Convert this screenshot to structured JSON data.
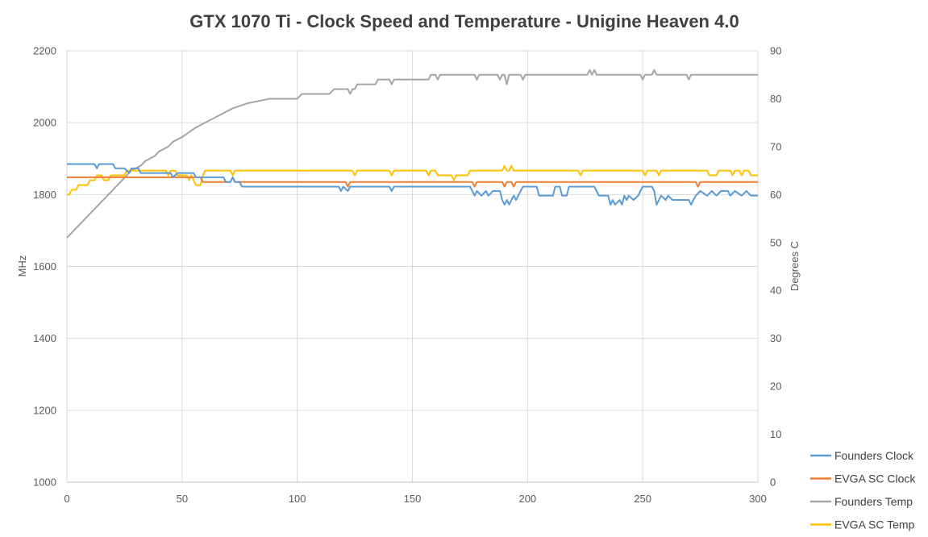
{
  "chart_data": {
    "type": "line",
    "title": "GTX 1070 Ti - Clock Speed and Temperature - Unigine Heaven 4.0",
    "xlabel": "",
    "ylabel": "MHz",
    "y2label": "Degrees C",
    "xlim": [
      0,
      300
    ],
    "ylim": [
      1000,
      2200
    ],
    "y2lim": [
      0,
      90
    ],
    "xticks": [
      "0",
      "50",
      "100",
      "150",
      "200",
      "250",
      "300"
    ],
    "xtick_values": [
      0,
      50,
      100,
      150,
      200,
      250,
      300
    ],
    "yticks": [
      "1000",
      "1200",
      "1400",
      "1600",
      "1800",
      "2000",
      "2200"
    ],
    "ytick_values": [
      1000,
      1200,
      1400,
      1600,
      1800,
      2000,
      2200
    ],
    "y2ticks": [
      "0",
      "10",
      "20",
      "30",
      "40",
      "50",
      "60",
      "70",
      "80",
      "90"
    ],
    "y2tick_values": [
      0,
      10,
      20,
      30,
      40,
      50,
      60,
      70,
      80,
      90
    ],
    "grid": true,
    "legend_position": "bottom-right",
    "series": [
      {
        "name": "Founders Clock",
        "axis": "left",
        "color": "#5B9BD5",
        "points": [
          [
            0,
            1885
          ],
          [
            12,
            1885
          ],
          [
            13,
            1873
          ],
          [
            14,
            1885
          ],
          [
            20,
            1885
          ],
          [
            21,
            1873
          ],
          [
            25,
            1873
          ],
          [
            27,
            1860
          ],
          [
            28,
            1873
          ],
          [
            31,
            1873
          ],
          [
            32,
            1860
          ],
          [
            45,
            1860
          ],
          [
            46,
            1848
          ],
          [
            48,
            1860
          ],
          [
            55,
            1860
          ],
          [
            56,
            1848
          ],
          [
            68,
            1848
          ],
          [
            69,
            1835
          ],
          [
            71,
            1835
          ],
          [
            72,
            1848
          ],
          [
            73,
            1835
          ],
          [
            75,
            1835
          ],
          [
            76,
            1822
          ],
          [
            118,
            1822
          ],
          [
            119,
            1810
          ],
          [
            120,
            1822
          ],
          [
            122,
            1810
          ],
          [
            123,
            1822
          ],
          [
            140,
            1822
          ],
          [
            141,
            1810
          ],
          [
            142,
            1822
          ],
          [
            175,
            1822
          ],
          [
            176,
            1810
          ],
          [
            177,
            1797
          ],
          [
            178,
            1810
          ],
          [
            180,
            1797
          ],
          [
            182,
            1810
          ],
          [
            183,
            1797
          ],
          [
            185,
            1810
          ],
          [
            188,
            1810
          ],
          [
            189,
            1785
          ],
          [
            190,
            1772
          ],
          [
            191,
            1785
          ],
          [
            192,
            1772
          ],
          [
            193,
            1785
          ],
          [
            194,
            1797
          ],
          [
            195,
            1785
          ],
          [
            197,
            1810
          ],
          [
            198,
            1822
          ],
          [
            204,
            1822
          ],
          [
            205,
            1797
          ],
          [
            211,
            1797
          ],
          [
            212,
            1822
          ],
          [
            214,
            1822
          ],
          [
            215,
            1797
          ],
          [
            217,
            1797
          ],
          [
            218,
            1822
          ],
          [
            229,
            1822
          ],
          [
            230,
            1810
          ],
          [
            231,
            1797
          ],
          [
            235,
            1797
          ],
          [
            236,
            1772
          ],
          [
            237,
            1785
          ],
          [
            238,
            1772
          ],
          [
            240,
            1785
          ],
          [
            241,
            1772
          ],
          [
            242,
            1797
          ],
          [
            243,
            1785
          ],
          [
            244,
            1797
          ],
          [
            246,
            1785
          ],
          [
            248,
            1797
          ],
          [
            249,
            1810
          ],
          [
            250,
            1822
          ],
          [
            254,
            1822
          ],
          [
            255,
            1810
          ],
          [
            256,
            1772
          ],
          [
            258,
            1797
          ],
          [
            260,
            1785
          ],
          [
            261,
            1797
          ],
          [
            263,
            1785
          ],
          [
            270,
            1785
          ],
          [
            271,
            1772
          ],
          [
            272,
            1785
          ],
          [
            273,
            1797
          ],
          [
            275,
            1810
          ],
          [
            278,
            1797
          ],
          [
            280,
            1810
          ],
          [
            282,
            1797
          ],
          [
            284,
            1810
          ],
          [
            287,
            1810
          ],
          [
            288,
            1797
          ],
          [
            290,
            1810
          ],
          [
            293,
            1797
          ],
          [
            295,
            1810
          ],
          [
            297,
            1797
          ],
          [
            300,
            1797
          ]
        ]
      },
      {
        "name": "EVGA SC Clock",
        "axis": "left",
        "color": "#ED7D31",
        "points": [
          [
            0,
            1848
          ],
          [
            58,
            1848
          ],
          [
            59,
            1835
          ],
          [
            71,
            1835
          ],
          [
            72,
            1848
          ],
          [
            73,
            1835
          ],
          [
            121,
            1835
          ],
          [
            122,
            1822
          ],
          [
            123,
            1835
          ],
          [
            176,
            1835
          ],
          [
            177,
            1822
          ],
          [
            178,
            1835
          ],
          [
            189,
            1835
          ],
          [
            190,
            1822
          ],
          [
            191,
            1835
          ],
          [
            193,
            1835
          ],
          [
            194,
            1822
          ],
          [
            195,
            1835
          ],
          [
            273,
            1835
          ],
          [
            274,
            1822
          ],
          [
            275,
            1835
          ],
          [
            300,
            1835
          ]
        ]
      },
      {
        "name": "Founders Temp",
        "axis": "right",
        "color": "#A5A5A5",
        "points": [
          [
            0,
            51
          ],
          [
            2,
            52
          ],
          [
            4,
            53
          ],
          [
            6,
            54
          ],
          [
            8,
            55
          ],
          [
            10,
            56
          ],
          [
            12,
            57
          ],
          [
            14,
            58
          ],
          [
            16,
            59
          ],
          [
            18,
            60
          ],
          [
            20,
            61
          ],
          [
            22,
            62
          ],
          [
            24,
            63
          ],
          [
            26,
            64
          ],
          [
            28,
            65
          ],
          [
            30,
            65.5
          ],
          [
            32,
            66
          ],
          [
            34,
            67
          ],
          [
            36,
            67.5
          ],
          [
            38,
            68
          ],
          [
            40,
            69
          ],
          [
            42,
            69.5
          ],
          [
            44,
            70
          ],
          [
            46,
            71
          ],
          [
            48,
            71.5
          ],
          [
            50,
            72
          ],
          [
            53,
            73
          ],
          [
            56,
            74
          ],
          [
            60,
            75
          ],
          [
            64,
            76
          ],
          [
            68,
            77
          ],
          [
            72,
            78
          ],
          [
            78,
            79
          ],
          [
            88,
            80
          ],
          [
            100,
            80
          ],
          [
            102,
            81
          ],
          [
            114,
            81
          ],
          [
            116,
            82
          ],
          [
            122,
            82
          ],
          [
            123,
            81
          ],
          [
            124,
            82
          ],
          [
            125,
            82
          ],
          [
            126,
            83
          ],
          [
            134,
            83
          ],
          [
            135,
            84
          ],
          [
            140,
            84
          ],
          [
            141,
            83
          ],
          [
            142,
            84
          ],
          [
            157,
            84
          ],
          [
            158,
            85
          ],
          [
            160,
            85
          ],
          [
            161,
            84
          ],
          [
            162,
            85
          ],
          [
            177,
            85
          ],
          [
            178,
            84
          ],
          [
            179,
            85
          ],
          [
            187,
            85
          ],
          [
            188,
            84
          ],
          [
            189,
            85
          ],
          [
            190,
            85
          ],
          [
            191,
            83
          ],
          [
            192,
            85
          ],
          [
            197,
            85
          ],
          [
            198,
            84
          ],
          [
            199,
            85
          ],
          [
            226,
            85
          ],
          [
            227,
            86
          ],
          [
            228,
            85
          ],
          [
            229,
            86
          ],
          [
            230,
            85
          ],
          [
            249,
            85
          ],
          [
            250,
            84
          ],
          [
            251,
            85
          ],
          [
            254,
            85
          ],
          [
            255,
            86
          ],
          [
            256,
            85
          ],
          [
            269,
            85
          ],
          [
            270,
            84
          ],
          [
            271,
            85
          ],
          [
            300,
            85
          ]
        ]
      },
      {
        "name": "EVGA SC Temp",
        "axis": "right",
        "color": "#FFC000",
        "points": [
          [
            0,
            60
          ],
          [
            1,
            60
          ],
          [
            2,
            61
          ],
          [
            4,
            61
          ],
          [
            5,
            62
          ],
          [
            9,
            62
          ],
          [
            10,
            63
          ],
          [
            12,
            63
          ],
          [
            13,
            64
          ],
          [
            15,
            64
          ],
          [
            16,
            63
          ],
          [
            18,
            63
          ],
          [
            19,
            64
          ],
          [
            25,
            64
          ],
          [
            26,
            65
          ],
          [
            43,
            65
          ],
          [
            44,
            64
          ],
          [
            45,
            65
          ],
          [
            47,
            65
          ],
          [
            48,
            64
          ],
          [
            50,
            64
          ],
          [
            52,
            64
          ],
          [
            53,
            63
          ],
          [
            54,
            64
          ],
          [
            55,
            63
          ],
          [
            56,
            62
          ],
          [
            58,
            62
          ],
          [
            59,
            64
          ],
          [
            60,
            65
          ],
          [
            71,
            65
          ],
          [
            72,
            64
          ],
          [
            73,
            65
          ],
          [
            124,
            65
          ],
          [
            125,
            64
          ],
          [
            126,
            65
          ],
          [
            140,
            65
          ],
          [
            141,
            64
          ],
          [
            142,
            65
          ],
          [
            156,
            65
          ],
          [
            157,
            64
          ],
          [
            158,
            65
          ],
          [
            160,
            65
          ],
          [
            161,
            64
          ],
          [
            167,
            64
          ],
          [
            168,
            63
          ],
          [
            169,
            64
          ],
          [
            174,
            64
          ],
          [
            175,
            65
          ],
          [
            189,
            65
          ],
          [
            190,
            66
          ],
          [
            191,
            65
          ],
          [
            192,
            65
          ],
          [
            193,
            66
          ],
          [
            194,
            65
          ],
          [
            222,
            65
          ],
          [
            223,
            64
          ],
          [
            224,
            65
          ],
          [
            250,
            65
          ],
          [
            251,
            64
          ],
          [
            252,
            65
          ],
          [
            256,
            65
          ],
          [
            257,
            64
          ],
          [
            258,
            65
          ],
          [
            278,
            65
          ],
          [
            279,
            64
          ],
          [
            282,
            64
          ],
          [
            283,
            65
          ],
          [
            288,
            65
          ],
          [
            289,
            64
          ],
          [
            290,
            65
          ],
          [
            292,
            65
          ],
          [
            293,
            64
          ],
          [
            294,
            65
          ],
          [
            296,
            65
          ],
          [
            297,
            64
          ],
          [
            300,
            64
          ]
        ]
      }
    ]
  }
}
